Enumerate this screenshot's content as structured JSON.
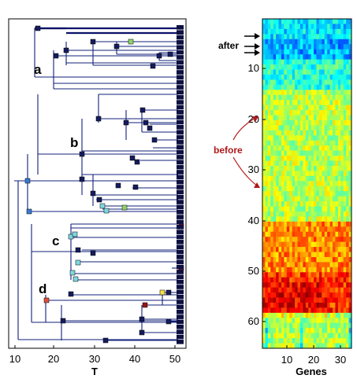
{
  "tree": {
    "x_ticks": [
      "10",
      "20",
      "30",
      "40",
      "50"
    ],
    "x_label": "T",
    "clade_labels": [
      "a",
      "b",
      "c",
      "d"
    ],
    "branch_color": "#12207a",
    "node_color": "#151c5e",
    "leaf_color": "#0d1040"
  },
  "heatmap": {
    "y_ticks": [
      "10",
      "20",
      "30",
      "40",
      "50",
      "60"
    ],
    "x_ticks": [
      "10",
      "20",
      "30"
    ],
    "x_label": "Genes",
    "annotation_after": "after",
    "annotation_before": "before",
    "annotation_before_color": "#b01818",
    "colormap": "jet"
  }
}
